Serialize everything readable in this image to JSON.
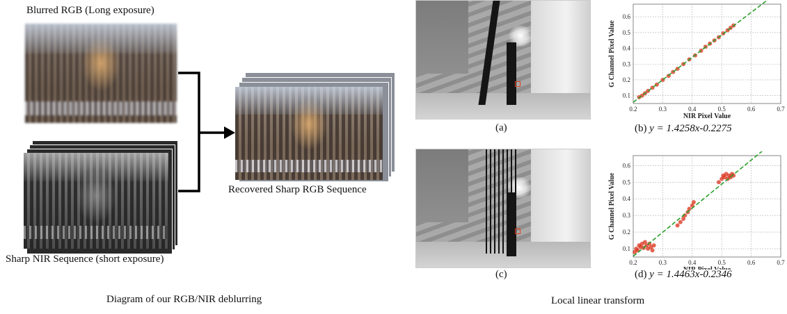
{
  "left_panel": {
    "blurred_label": "Blurred RGB (Long exposure)",
    "nir_label": "Sharp NIR Sequence (short exposure)",
    "recovered_label": "Recovered Sharp RGB Sequence",
    "caption": "Diagram of our RGB/NIR deblurring"
  },
  "right_panel": {
    "caption_a": "(a)",
    "caption_b_prefix": "(b) ",
    "caption_b_eq": "y = 1.4258x-0.2275",
    "caption_c": "(c)",
    "caption_d_prefix": "(d) ",
    "caption_d_eq": "y = 1.4463x-0.2346",
    "caption": "Local linear transform"
  },
  "colors": {
    "fit_line": "#2aa02a",
    "points": "#d9301a",
    "grid": "#999999"
  },
  "chart_data": [
    {
      "type": "scatter",
      "title": "",
      "xlabel": "NIR Pixel Value",
      "ylabel": "G Channel Pixel Value",
      "xlim": [
        0.2,
        0.7
      ],
      "ylim": [
        0.05,
        0.68
      ],
      "xticks": [
        "0.2",
        "0.3",
        "0.4",
        "0.5",
        "0.6",
        "0.7"
      ],
      "yticks": [
        "0.1",
        "0.2",
        "0.3",
        "0.4",
        "0.5",
        "0.6"
      ],
      "fit": {
        "slope": 1.4258,
        "intercept": -0.2275
      },
      "points": [
        [
          0.22,
          0.09
        ],
        [
          0.23,
          0.1
        ],
        [
          0.24,
          0.115
        ],
        [
          0.25,
          0.13
        ],
        [
          0.265,
          0.15
        ],
        [
          0.28,
          0.17
        ],
        [
          0.3,
          0.2
        ],
        [
          0.32,
          0.225
        ],
        [
          0.335,
          0.25
        ],
        [
          0.35,
          0.27
        ],
        [
          0.37,
          0.3
        ],
        [
          0.39,
          0.33
        ],
        [
          0.41,
          0.355
        ],
        [
          0.43,
          0.385
        ],
        [
          0.445,
          0.41
        ],
        [
          0.46,
          0.43
        ],
        [
          0.475,
          0.45
        ],
        [
          0.49,
          0.47
        ],
        [
          0.505,
          0.495
        ],
        [
          0.52,
          0.515
        ],
        [
          0.53,
          0.53
        ],
        [
          0.54,
          0.545
        ]
      ]
    },
    {
      "type": "scatter",
      "title": "",
      "xlabel": "NIR Pixel Value",
      "ylabel": "G Channel Pixel Value",
      "xlim": [
        0.2,
        0.7
      ],
      "ylim": [
        0.05,
        0.66
      ],
      "xticks": [
        "0.2",
        "0.3",
        "0.4",
        "0.5",
        "0.6",
        "0.7"
      ],
      "yticks": [
        "0.1",
        "0.2",
        "0.3",
        "0.4",
        "0.5",
        "0.6"
      ],
      "fit": {
        "slope": 1.4463,
        "intercept": -0.2346
      },
      "points": [
        [
          0.205,
          0.08
        ],
        [
          0.21,
          0.1
        ],
        [
          0.215,
          0.09
        ],
        [
          0.22,
          0.12
        ],
        [
          0.225,
          0.11
        ],
        [
          0.23,
          0.13
        ],
        [
          0.235,
          0.105
        ],
        [
          0.24,
          0.14
        ],
        [
          0.245,
          0.12
        ],
        [
          0.25,
          0.1
        ],
        [
          0.255,
          0.13
        ],
        [
          0.26,
          0.11
        ],
        [
          0.265,
          0.09
        ],
        [
          0.27,
          0.12
        ],
        [
          0.35,
          0.24
        ],
        [
          0.36,
          0.26
        ],
        [
          0.37,
          0.28
        ],
        [
          0.375,
          0.3
        ],
        [
          0.385,
          0.32
        ],
        [
          0.39,
          0.34
        ],
        [
          0.4,
          0.36
        ],
        [
          0.405,
          0.38
        ],
        [
          0.49,
          0.5
        ],
        [
          0.5,
          0.52
        ],
        [
          0.505,
          0.54
        ],
        [
          0.51,
          0.53
        ],
        [
          0.515,
          0.55
        ],
        [
          0.52,
          0.52
        ],
        [
          0.525,
          0.54
        ],
        [
          0.53,
          0.53
        ],
        [
          0.535,
          0.55
        ],
        [
          0.54,
          0.54
        ]
      ]
    }
  ]
}
